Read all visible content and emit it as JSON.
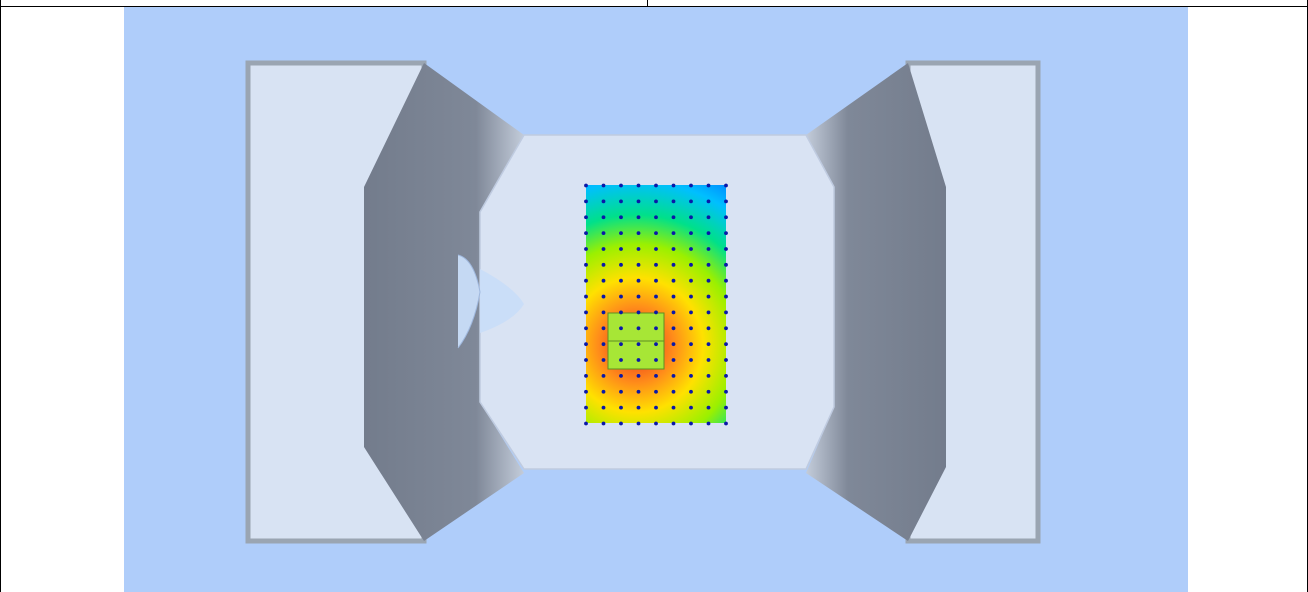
{
  "scene": {
    "background_color": "#afcdfa",
    "pad_face_color": "#d8e3f3",
    "pad_edge_color": "#9aa5b2",
    "slope_color": "#7a8393",
    "chamber_floor_color": "#d9e3f3",
    "droplet_color": "#c9ddf8",
    "probe_point_color": "#0a18a8",
    "component_color": "#a7e636",
    "heatmap_colors": [
      "#0050ff",
      "#00bfff",
      "#00e08a",
      "#9bf000",
      "#ffe100",
      "#ff8c1a",
      "#e8281e"
    ]
  },
  "field": {
    "grid_columns": 9,
    "grid_rows": 16
  }
}
